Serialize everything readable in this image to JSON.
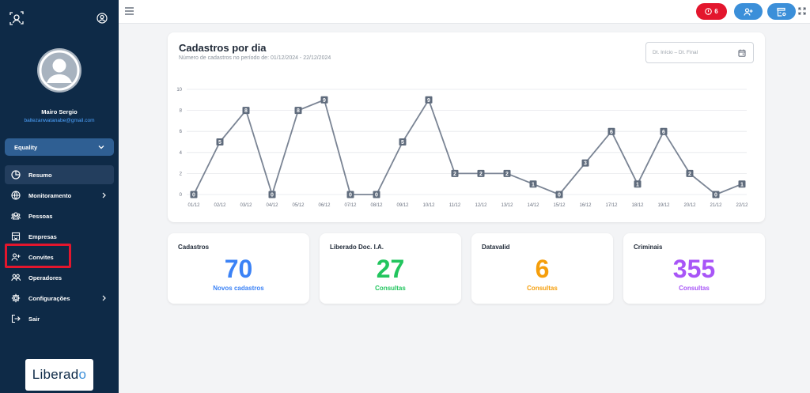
{
  "sidebar": {
    "user_name": "Mairo Sergio",
    "user_email": "baltezanwatanabe@gmail.com",
    "company": "Equality",
    "items": [
      {
        "label": "Resumo",
        "icon": "pie-chart-icon",
        "active": true
      },
      {
        "label": "Monitoramento",
        "icon": "globe-icon",
        "has_submenu": true
      },
      {
        "label": "Pessoas",
        "icon": "people-icon"
      },
      {
        "label": "Empresas",
        "icon": "building-icon"
      },
      {
        "label": "Convites",
        "icon": "add-user-icon"
      },
      {
        "label": "Operadores",
        "icon": "operators-icon"
      },
      {
        "label": "Configurações",
        "icon": "gear-icon",
        "has_submenu": true
      },
      {
        "label": "Sair",
        "icon": "logout-icon"
      }
    ],
    "brand": "Liberad",
    "brand_mark": "o"
  },
  "topbar": {
    "alert_count": "6"
  },
  "chart": {
    "title": "Cadastros por dia",
    "subtitle": "Número de cadastros no período de: 01/12/2024 - 22/12/2024",
    "date_placeholder": "Dt. Início – Dt. Final"
  },
  "chart_data": {
    "type": "line",
    "title": "Cadastros por dia",
    "x": [
      "01/12",
      "02/12",
      "03/12",
      "04/12",
      "05/12",
      "06/12",
      "07/12",
      "08/12",
      "09/12",
      "10/12",
      "11/12",
      "12/12",
      "13/12",
      "14/12",
      "15/12",
      "16/12",
      "17/12",
      "18/12",
      "19/12",
      "20/12",
      "21/12",
      "22/12"
    ],
    "series": [
      {
        "values": [
          0,
          5,
          8,
          0,
          8,
          9,
          0,
          0,
          5,
          9,
          2,
          2,
          2,
          1,
          0,
          3,
          6,
          1,
          6,
          2,
          0,
          1
        ],
        "color": "#7a8494"
      }
    ],
    "yticks": [
      0,
      2,
      4,
      6,
      8,
      10
    ],
    "ylim": [
      0,
      10
    ],
    "grid": true,
    "data_labels": true
  },
  "stats": [
    {
      "title": "Cadastros",
      "value": "70",
      "label": "Novos cadastros",
      "color": "#3b82f6"
    },
    {
      "title": "Liberado Doc. I.A.",
      "value": "27",
      "label": "Consultas",
      "color": "#22c55e"
    },
    {
      "title": "Datavalid",
      "value": "6",
      "label": "Consultas",
      "color": "#f59e0b"
    },
    {
      "title": "Criminais",
      "value": "355",
      "label": "Consultas",
      "color": "#a855f7"
    }
  ],
  "colors": {
    "sidebar": "#0e2a47",
    "alert": "#e3162d",
    "accent": "#3b8fd9"
  }
}
